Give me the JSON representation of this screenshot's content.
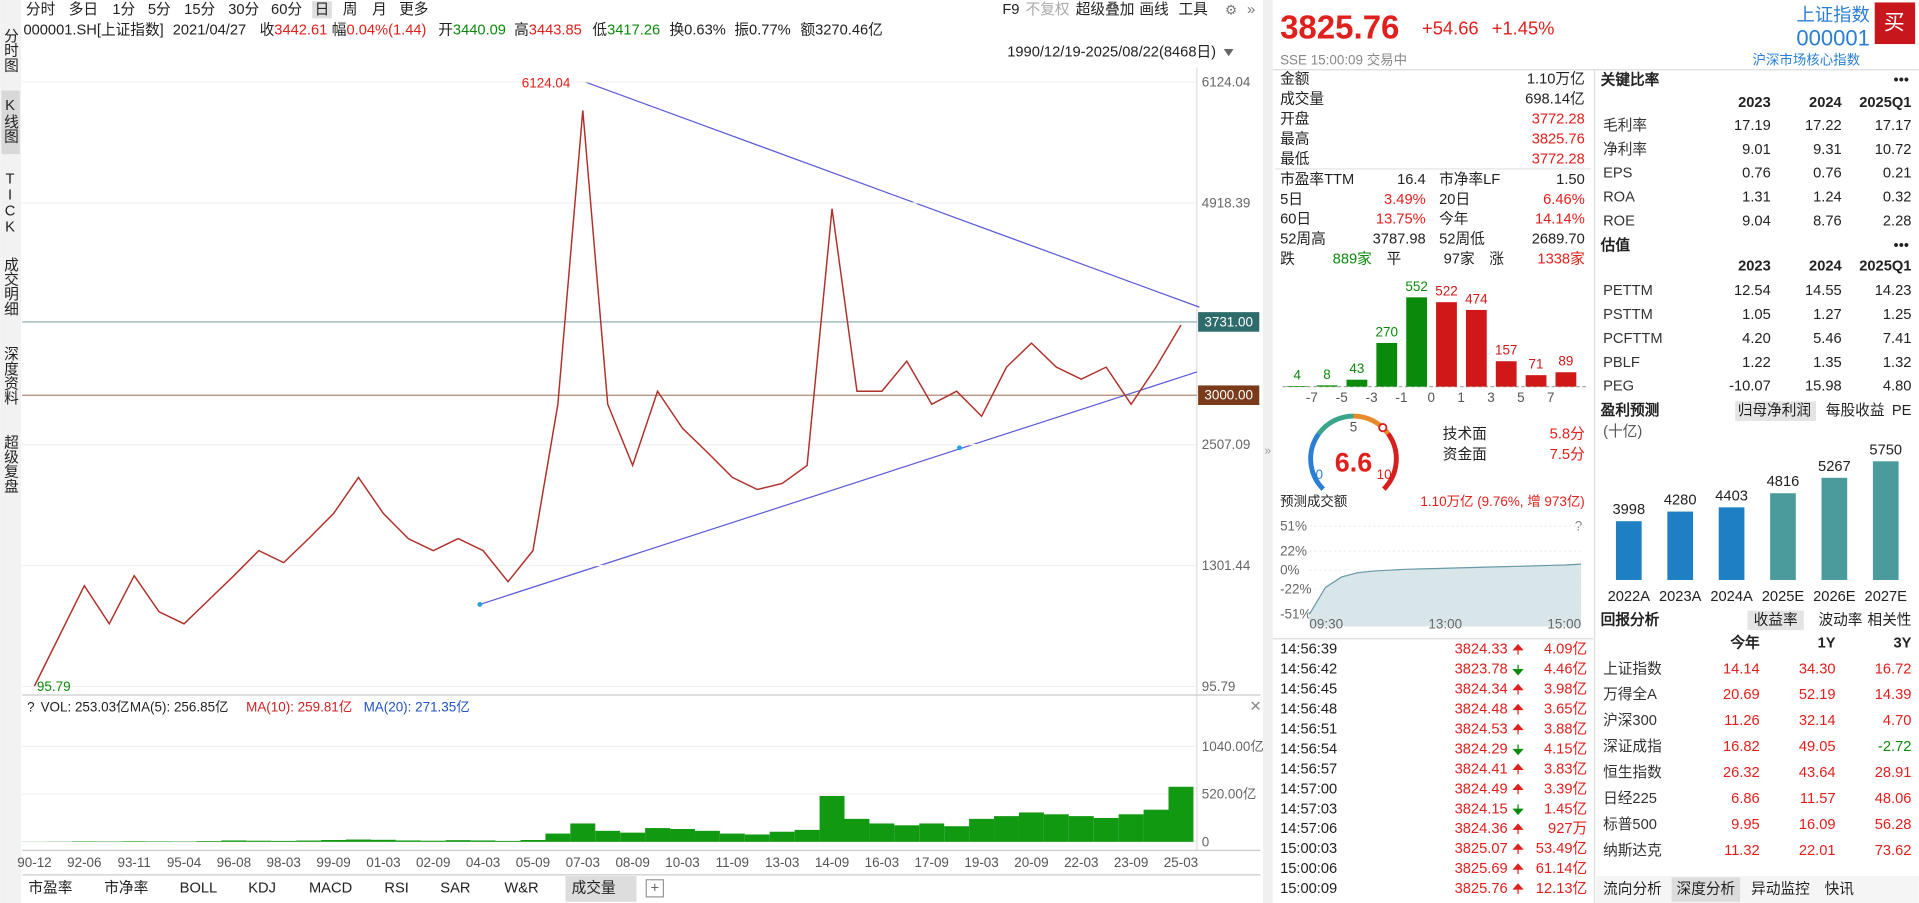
{
  "toolbar": {
    "periods": [
      "分时",
      "多日",
      "1分",
      "5分",
      "15分",
      "30分",
      "60分",
      "日",
      "周",
      "月",
      "更多"
    ],
    "active": 7,
    "tools": [
      "F9",
      "不复权",
      "超级叠加",
      "画线",
      "工具"
    ]
  },
  "info": {
    "symbol": "000001.SH[上证指数]",
    "date": "2021/04/27",
    "items": [
      {
        "label": "收",
        "value": "3442.61",
        "color": "#e0201c"
      },
      {
        "label": "幅",
        "value": "0.04%(1.44)",
        "color": "#e0201c"
      },
      {
        "label": "开",
        "value": "3440.09",
        "color": "#0a8a0a"
      },
      {
        "label": "高",
        "value": "3443.85",
        "color": "#e0201c"
      },
      {
        "label": "低",
        "value": "3417.26",
        "color": "#0a8a0a"
      },
      {
        "label": "换",
        "value": "0.63%",
        "color": "#222222"
      },
      {
        "label": "振",
        "value": "0.77%",
        "color": "#222222"
      },
      {
        "label": "额",
        "value": "3270.46亿",
        "color": "#222222"
      }
    ]
  },
  "range": "1990/12/19-2025/08/22(8468日)",
  "sidebar": {
    "tabs": [
      "分时图",
      "K线图",
      "TICK",
      "成交明细",
      "深度资料",
      "超级复盘"
    ],
    "active": 1
  },
  "kline": {
    "type": "line",
    "color": "#b0302a",
    "categories": [
      "90-12",
      null,
      "92-06",
      null,
      "93-11",
      null,
      "95-04",
      null,
      "96-08",
      null,
      "98-03",
      null,
      "99-09",
      null,
      "01-03",
      null,
      "02-09",
      null,
      "04-03",
      null,
      "05-09",
      null,
      "07-03",
      null,
      "08-09",
      null,
      "10-03",
      null,
      "11-09",
      null,
      "13-03",
      null,
      "14-09",
      null,
      "16-03",
      null,
      "17-09",
      null,
      "19-03",
      null,
      "20-09",
      null,
      "22-03",
      null,
      "23-09",
      null,
      "25-03"
    ],
    "values": [
      100,
      600,
      1100,
      720,
      1200,
      840,
      720,
      960,
      1200,
      1450,
      1330,
      1570,
      1820,
      2180,
      1820,
      1570,
      1450,
      1570,
      1450,
      1140,
      1450,
      2910,
      5840,
      2910,
      2300,
      3040,
      2670,
      2430,
      2180,
      2060,
      2120,
      2300,
      4860,
      3040,
      3040,
      3340,
      2910,
      3040,
      2790,
      3280,
      3520,
      3280,
      3160,
      3280,
      2910,
      3280,
      3700
    ],
    "ylim": [
      95.79,
      6124.04
    ],
    "yticks": [
      6124.04,
      4918.39,
      2507.09,
      1301.44,
      95.79
    ],
    "annotations": [
      {
        "text": "6124.04",
        "color": "#e0201c"
      },
      {
        "text": "95.79",
        "color": "#0a8a0a"
      }
    ],
    "levels": [
      {
        "value": 3731,
        "label": "3731.00",
        "color": "#2e6b6b"
      },
      {
        "value": 3000,
        "label": "3000.00",
        "color": "#7a3b1b"
      }
    ]
  },
  "volume": {
    "type": "bar",
    "help": "?",
    "legend": [
      {
        "text": "VOL: 253.03亿",
        "color": "#222222"
      },
      {
        "text": "MA(5): 256.85亿",
        "color": "#222222"
      },
      {
        "text": "MA(10): 259.81亿",
        "color": "#d02020"
      },
      {
        "text": "MA(20): 271.35亿",
        "color": "#2050c0"
      }
    ],
    "values": [
      1,
      2,
      5,
      4,
      6,
      5,
      4,
      8,
      15,
      12,
      10,
      14,
      20,
      25,
      22,
      15,
      12,
      18,
      15,
      10,
      20,
      90,
      200,
      120,
      100,
      150,
      140,
      120,
      90,
      80,
      110,
      130,
      500,
      250,
      200,
      180,
      200,
      170,
      250,
      280,
      320,
      300,
      280,
      260,
      300,
      350,
      600
    ],
    "color": "#119911",
    "ylim": [
      0,
      1040
    ],
    "yticks": [
      {
        "value": 1040,
        "label": "1040.00亿"
      },
      {
        "value": 520,
        "label": "520.00亿"
      },
      0
    ]
  },
  "indicators": {
    "tabs": [
      "市盈率",
      "市净率",
      "BOLL",
      "KDJ",
      "MACD",
      "RSI",
      "SAR",
      "W&R",
      "成交量"
    ],
    "active": 8
  },
  "quote": {
    "price": "3825.76",
    "change": "+54.66",
    "pct": "+1.45%",
    "status": "SSE 15:00:09 交易中",
    "name": "上证指数",
    "code": "000001",
    "subtitle": "沪深市场核心指数",
    "buy": "买"
  },
  "stats": [
    {
      "label": "金额",
      "value": "1.10万亿",
      "color": "#222222"
    },
    {
      "label": "成交量",
      "value": "698.14亿",
      "color": "#222222"
    },
    {
      "label": "开盘",
      "value": "3772.28",
      "color": "#e0201c"
    },
    {
      "label": "最高",
      "value": "3825.76",
      "color": "#e0201c"
    },
    {
      "label": "最低",
      "value": "3772.28",
      "color": "#e0201c"
    }
  ],
  "stats2": [
    [
      {
        "label": "市盈率TTM",
        "value": "16.4",
        "color": "#222222"
      },
      {
        "label": "市净率LF",
        "value": "1.50",
        "color": "#222222"
      }
    ],
    [
      {
        "label": "5日",
        "value": "3.49%",
        "color": "#e0201c"
      },
      {
        "label": "20日",
        "value": "6.46%",
        "color": "#e0201c"
      }
    ],
    [
      {
        "label": "60日",
        "value": "13.75%",
        "color": "#e0201c"
      },
      {
        "label": "今年",
        "value": "14.14%",
        "color": "#e0201c"
      }
    ],
    [
      {
        "label": "52周高",
        "value": "3787.98",
        "color": "#222222"
      },
      {
        "label": "52周低",
        "value": "2689.70",
        "color": "#222222"
      }
    ]
  ],
  "breadth": [
    {
      "label": "跌",
      "value": "889家",
      "color": "#0a8a0a"
    },
    {
      "label": "平",
      "value": "97家",
      "color": "#222222"
    },
    {
      "label": "涨",
      "value": "1338家",
      "color": "#e0201c"
    }
  ],
  "distribution": {
    "type": "bar",
    "values": [
      4,
      8,
      43,
      270,
      552,
      522,
      474,
      157,
      71,
      89
    ],
    "colors": [
      "#0a8a0a",
      "#0a8a0a",
      "#0a8a0a",
      "#0a8a0a",
      "#0a8a0a",
      "#d01818",
      "#d01818",
      "#d01818",
      "#d01818",
      "#d01818"
    ],
    "xticks": [
      -7,
      -5,
      -3,
      -1,
      0,
      1,
      3,
      5,
      7
    ]
  },
  "gauge": {
    "type": "gauge",
    "value": 6.6,
    "ticks": [
      0,
      5,
      10
    ],
    "items": [
      {
        "label": "技术面",
        "value": "5.8分"
      },
      {
        "label": "资金面",
        "value": "7.5分"
      }
    ]
  },
  "forecast": {
    "label": "预测成交额",
    "value": "1.10万亿 (9.76%, 增 973亿)",
    "help": "?"
  },
  "intraday": {
    "type": "area",
    "values": [
      -51,
      -20,
      -8,
      -3,
      -1,
      0,
      1,
      1.5,
      2,
      2.5,
      3,
      3.5,
      4,
      4.5,
      5,
      5.5,
      6,
      7
    ],
    "ylim": [
      -51,
      51
    ],
    "yticks": [
      {
        "value": 51,
        "label": "51%"
      },
      {
        "value": 22,
        "label": "22%"
      },
      {
        "value": 0,
        "label": "0%"
      },
      {
        "value": -22,
        "label": "-22%"
      },
      {
        "value": -51,
        "label": "-51%"
      }
    ],
    "xlabels": [
      "09:30",
      "13:00",
      "15:00"
    ]
  },
  "ticks": [
    {
      "time": "14:56:39",
      "price": "3824.33",
      "dir": "up",
      "volume": "4.09亿"
    },
    {
      "time": "14:56:42",
      "price": "3823.78",
      "dir": "down",
      "volume": "4.46亿"
    },
    {
      "time": "14:56:45",
      "price": "3824.34",
      "dir": "up",
      "volume": "3.98亿"
    },
    {
      "time": "14:56:48",
      "price": "3824.48",
      "dir": "up",
      "volume": "3.65亿"
    },
    {
      "time": "14:56:51",
      "price": "3824.53",
      "dir": "up",
      "volume": "3.88亿"
    },
    {
      "time": "14:56:54",
      "price": "3824.29",
      "dir": "down",
      "volume": "4.15亿"
    },
    {
      "time": "14:56:57",
      "price": "3824.41",
      "dir": "up",
      "volume": "3.83亿"
    },
    {
      "time": "14:57:00",
      "price": "3824.49",
      "dir": "up",
      "volume": "3.39亿"
    },
    {
      "time": "14:57:03",
      "price": "3824.15",
      "dir": "down",
      "volume": "1.45亿"
    },
    {
      "time": "14:57:06",
      "price": "3824.36",
      "dir": "up",
      "volume": "927万"
    },
    {
      "time": "15:00:03",
      "price": "3825.07",
      "dir": "up",
      "volume": "53.49亿"
    },
    {
      "time": "15:00:06",
      "price": "3825.69",
      "dir": "up",
      "volume": "61.14亿"
    },
    {
      "time": "15:00:09",
      "price": "3825.76",
      "dir": "up",
      "volume": "12.13亿"
    }
  ],
  "ratios": {
    "title": "关键比率",
    "more": "•••",
    "columns": [
      "2023",
      "2024",
      "2025Q1"
    ],
    "rows": [
      {
        "label": "毛利率",
        "values": [
          "17.19",
          "17.22",
          "17.17"
        ]
      },
      {
        "label": "净利率",
        "values": [
          "9.01",
          "9.31",
          "10.72"
        ]
      },
      {
        "label": "EPS",
        "values": [
          "0.76",
          "0.76",
          "0.21"
        ]
      },
      {
        "label": "ROA",
        "values": [
          "1.31",
          "1.24",
          "0.32"
        ]
      },
      {
        "label": "ROE",
        "values": [
          "9.04",
          "8.76",
          "2.28"
        ]
      }
    ]
  },
  "valuation": {
    "title": "估值",
    "more": "•••",
    "columns": [
      "2023",
      "2024",
      "2025Q1"
    ],
    "rows": [
      {
        "label": "PETTM",
        "values": [
          "12.54",
          "14.55",
          "14.23"
        ]
      },
      {
        "label": "PSTTM",
        "values": [
          "1.05",
          "1.27",
          "1.25"
        ]
      },
      {
        "label": "PCFTTM",
        "values": [
          "4.20",
          "5.46",
          "7.41"
        ]
      },
      {
        "label": "PBLF",
        "values": [
          "1.22",
          "1.35",
          "1.32"
        ]
      },
      {
        "label": "PEG",
        "values": [
          "-10.07",
          "15.98",
          "4.80"
        ]
      }
    ]
  },
  "earnings": {
    "type": "bar",
    "title": "盈利预测",
    "tabs": [
      "归母净利润",
      "每股收益",
      "PE"
    ],
    "active": 0,
    "unit": "(十亿)",
    "categories": [
      "2022A",
      "2023A",
      "2024A",
      "2025E",
      "2026E",
      "2027E"
    ],
    "values": [
      3998,
      4280,
      4403,
      4816,
      5267,
      5750
    ],
    "colors": [
      "#1f7fc4",
      "#1f7fc4",
      "#1f7fc4",
      "#4a9c9c",
      "#4a9c9c",
      "#4a9c9c"
    ],
    "ylim": [
      2280,
      5750
    ]
  },
  "returns": {
    "title": "回报分析",
    "tabs": [
      "收益率",
      "波动率",
      "相关性"
    ],
    "active": 0,
    "columns": [
      "今年",
      "1Y",
      "3Y"
    ],
    "rows": [
      {
        "label": "上证指数",
        "values": [
          "14.14",
          "34.30",
          "16.72"
        ]
      },
      {
        "label": "万得全A",
        "values": [
          "20.69",
          "52.19",
          "14.39"
        ]
      },
      {
        "label": "沪深300",
        "values": [
          "11.26",
          "32.14",
          "4.70"
        ]
      },
      {
        "label": "深证成指",
        "values": [
          "16.82",
          "49.05",
          "-2.72"
        ]
      },
      {
        "label": "恒生指数",
        "values": [
          "26.32",
          "43.64",
          "28.91"
        ]
      },
      {
        "label": "日经225",
        "values": [
          "6.86",
          "11.57",
          "48.06"
        ]
      },
      {
        "label": "标普500",
        "values": [
          "9.95",
          "16.09",
          "56.28"
        ]
      },
      {
        "label": "纳斯达克",
        "values": [
          "11.32",
          "22.01",
          "73.62"
        ]
      }
    ]
  },
  "bottom_tabs": {
    "tabs": [
      "流向分析",
      "深度分析",
      "异动监控",
      "快讯"
    ],
    "active": 1
  }
}
